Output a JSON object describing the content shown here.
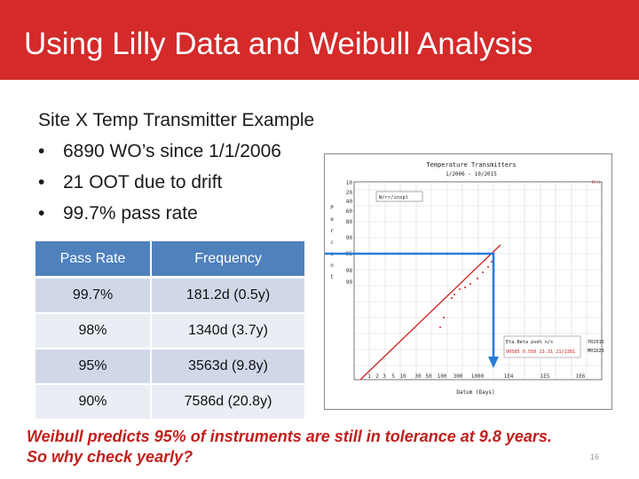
{
  "slide": {
    "title": "Using Lilly Data and Weibull Analysis",
    "subtitle": "Site X Temp Transmitter Example",
    "bullets": [
      "6890 WO’s since 1/1/2006",
      "21 OOT due to drift",
      "99.7% pass rate"
    ],
    "bullet_glyph": "•",
    "conclusion_line1": "Weibull predicts 95% of instruments are still in tolerance at 9.8 years.",
    "conclusion_line2": "So why check yearly?",
    "page_number": "16"
  },
  "table": {
    "headers": [
      "Pass Rate",
      "Frequency"
    ],
    "rows": [
      [
        "99.7%",
        "181.2d (0.5y)"
      ],
      [
        "98%",
        "1340d (3.7y)"
      ],
      [
        "95%",
        "3563d (9.8y)"
      ],
      [
        "90%",
        "7586d (20.8y)"
      ]
    ]
  },
  "plot": {
    "title": "Temperature Transmitters",
    "date_range": "1/2006 - 10/2015",
    "legend_box": "W/rr/inspl",
    "xlabel": "Datum (Days)",
    "x_ticks": [
      "1",
      "2",
      "3",
      "5",
      "10",
      "30",
      "50",
      "100",
      "300",
      "1000",
      "1E4",
      "1E5",
      "1E6"
    ],
    "y_ticks": [
      "10",
      "20",
      "40",
      "60",
      "80",
      "90",
      "95",
      "98",
      "99"
    ],
    "y_axis_letters": [
      "P",
      "e",
      "r",
      "c",
      "e",
      "n",
      "t"
    ],
    "stats_header": "Eta  Beta  pve%  n/s",
    "stats_values": "90585 0.550 13.31 21/1381",
    "corner_labels": [
      "YR2015",
      "M01D23"
    ],
    "line_color": "#cc2222",
    "arrow_color": "#2b7bd8"
  }
}
